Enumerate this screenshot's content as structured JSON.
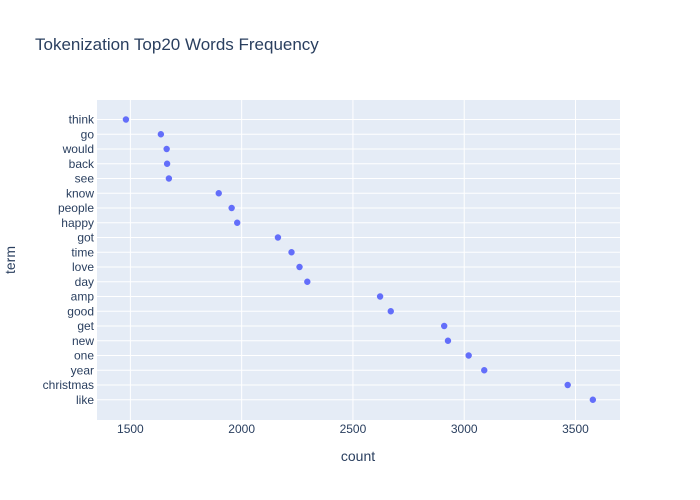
{
  "chart_data": {
    "type": "scatter",
    "title": "Tokenization Top20 Words Frequency",
    "xlabel": "count",
    "ylabel": "term",
    "xlim": [
      1350,
      3700
    ],
    "xticks": [
      1500,
      2000,
      2500,
      3000,
      3500
    ],
    "grid": true,
    "legend": "none",
    "points": [
      {
        "term": "think",
        "count": 1480
      },
      {
        "term": "go",
        "count": 1637
      },
      {
        "term": "would",
        "count": 1663
      },
      {
        "term": "back",
        "count": 1665
      },
      {
        "term": "see",
        "count": 1673
      },
      {
        "term": "know",
        "count": 1897
      },
      {
        "term": "people",
        "count": 1955
      },
      {
        "term": "happy",
        "count": 1980
      },
      {
        "term": "got",
        "count": 2163
      },
      {
        "term": "time",
        "count": 2224
      },
      {
        "term": "love",
        "count": 2260
      },
      {
        "term": "day",
        "count": 2295
      },
      {
        "term": "amp",
        "count": 2622
      },
      {
        "term": "good",
        "count": 2670
      },
      {
        "term": "get",
        "count": 2910
      },
      {
        "term": "new",
        "count": 2927
      },
      {
        "term": "one",
        "count": 3020
      },
      {
        "term": "year",
        "count": 3090
      },
      {
        "term": "christmas",
        "count": 3465
      },
      {
        "term": "like",
        "count": 3578
      }
    ]
  },
  "colors": {
    "plot_bg": "#e5ecf6",
    "grid": "#ffffff",
    "marker": "#636efa",
    "text": "#2a3f5f"
  }
}
